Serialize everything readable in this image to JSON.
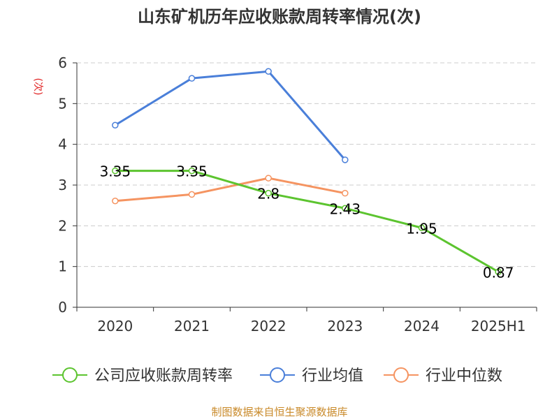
{
  "chart_data": {
    "type": "line",
    "title": "山东矿机历年应收账款周转率情况(次)",
    "ylabel": "(次)",
    "categories": [
      "2020",
      "2021",
      "2022",
      "2023",
      "2024",
      "2025H1"
    ],
    "ylim": [
      0,
      6
    ],
    "yticks": [
      0,
      1,
      2,
      3,
      4,
      5,
      6
    ],
    "grid": true,
    "legend_position": "bottom",
    "series": [
      {
        "name": "公司应收账款周转率",
        "color": "#5cc42f",
        "values": [
          3.35,
          3.35,
          2.8,
          2.43,
          1.95,
          0.87
        ],
        "labels": [
          "3.35",
          "3.35",
          "2.8",
          "2.43",
          "1.95",
          "0.87"
        ]
      },
      {
        "name": "行业均值",
        "color": "#4a7fd9",
        "values": [
          4.47,
          5.62,
          5.79,
          3.62,
          null,
          null
        ]
      },
      {
        "name": "行业中位数",
        "color": "#f59461",
        "values": [
          2.61,
          2.77,
          3.17,
          2.8,
          null,
          null
        ]
      }
    ]
  },
  "footer": {
    "source": "制图数据来自恒生聚源数据库"
  },
  "colors": {
    "title": "#333333",
    "axis": "#333333",
    "ylabel": "#e02020",
    "grid": "#cccccc",
    "footer": "#c98a2a"
  }
}
